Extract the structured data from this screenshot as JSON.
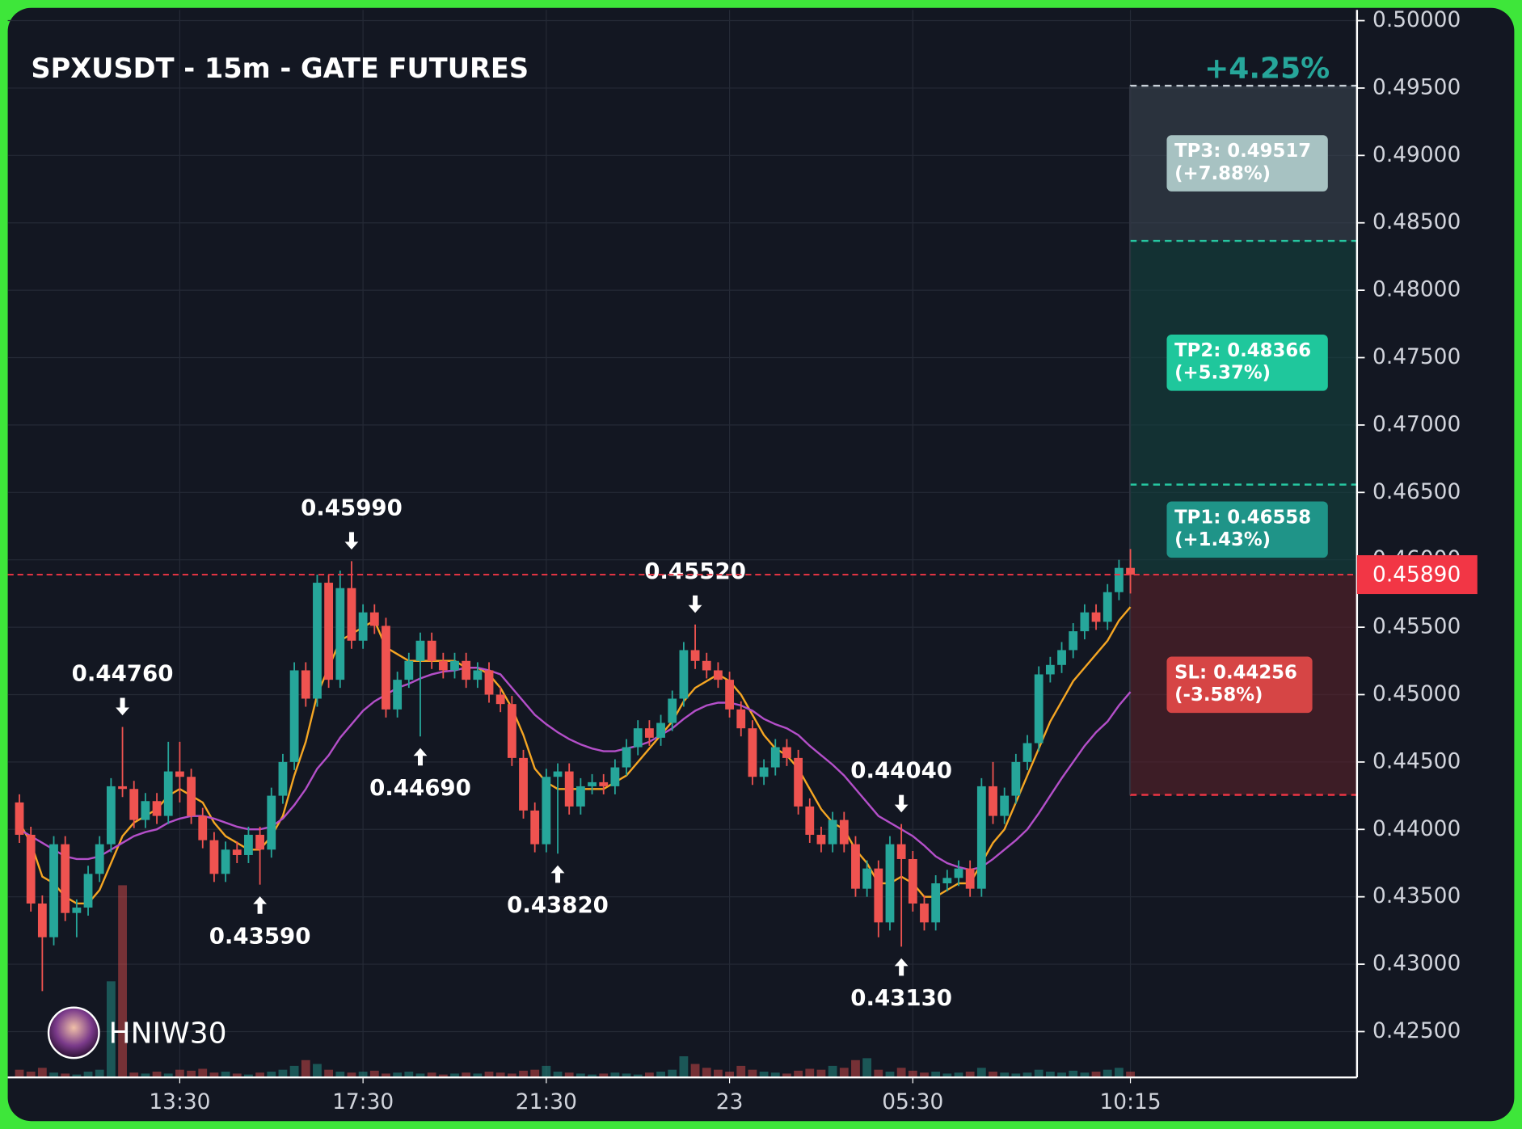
{
  "chart_data": {
    "type": "candlestick",
    "title": "SPXUSDT - 15m - GATE FUTURES",
    "change": "+4.25%",
    "watermark": "HNIW30",
    "up_color": "#26a69a",
    "down_color": "#ef5350",
    "grid": true,
    "ylim": [
      0.4216,
      0.5008
    ],
    "yticks": [
      {
        "value": 0.425,
        "label": "0.42500"
      },
      {
        "value": 0.43,
        "label": "0.43000"
      },
      {
        "value": 0.435,
        "label": "0.43500"
      },
      {
        "value": 0.44,
        "label": "0.44000"
      },
      {
        "value": 0.445,
        "label": "0.44500"
      },
      {
        "value": 0.45,
        "label": "0.45000"
      },
      {
        "value": 0.455,
        "label": "0.45500"
      },
      {
        "value": 0.46,
        "label": "0.46000"
      },
      {
        "value": 0.465,
        "label": "0.46500"
      },
      {
        "value": 0.47,
        "label": "0.47000"
      },
      {
        "value": 0.475,
        "label": "0.47500"
      },
      {
        "value": 0.48,
        "label": "0.48000"
      },
      {
        "value": 0.485,
        "label": "0.48500"
      },
      {
        "value": 0.49,
        "label": "0.49000"
      },
      {
        "value": 0.495,
        "label": "0.49500"
      },
      {
        "value": 0.5,
        "label": "0.50000"
      }
    ],
    "categories": [
      null,
      null,
      null,
      null,
      null,
      null,
      null,
      null,
      null,
      null,
      null,
      null,
      null,
      null,
      "13:30",
      null,
      null,
      null,
      null,
      null,
      null,
      null,
      null,
      null,
      null,
      null,
      null,
      null,
      null,
      null,
      "17:30",
      null,
      null,
      null,
      null,
      null,
      null,
      null,
      null,
      null,
      null,
      null,
      null,
      null,
      null,
      null,
      "21:30",
      null,
      null,
      null,
      null,
      null,
      null,
      null,
      null,
      null,
      null,
      null,
      null,
      null,
      null,
      null,
      "23",
      null,
      null,
      null,
      null,
      null,
      null,
      null,
      null,
      null,
      null,
      null,
      null,
      null,
      null,
      null,
      "05:30",
      null,
      null,
      null,
      null,
      null,
      null,
      null,
      null,
      null,
      null,
      null,
      null,
      null,
      null,
      null,
      null,
      null,
      null,
      "10:15"
    ],
    "open": [
      0.442,
      0.4396,
      0.4345,
      0.432,
      0.4389,
      0.4338,
      0.4342,
      0.4367,
      0.4389,
      0.4432,
      0.443,
      0.4407,
      0.4421,
      0.441,
      0.4443,
      0.4439,
      0.441,
      0.4392,
      0.4367,
      0.4385,
      0.4381,
      0.4396,
      0.4385,
      0.4425,
      0.445,
      0.4518,
      0.4497,
      0.4583,
      0.4511,
      0.4579,
      0.454,
      0.4561,
      0.4551,
      0.4489,
      0.4511,
      0.4525,
      0.454,
      0.4525,
      0.4518,
      0.4525,
      0.4511,
      0.4518,
      0.45,
      0.4493,
      0.4453,
      0.4414,
      0.4389,
      0.4439,
      0.4443,
      0.4417,
      0.4432,
      0.4435,
      0.4432,
      0.4446,
      0.4461,
      0.4475,
      0.4468,
      0.4479,
      0.4497,
      0.4533,
      0.4525,
      0.4518,
      0.4511,
      0.4489,
      0.4475,
      0.4439,
      0.4446,
      0.4461,
      0.4453,
      0.4417,
      0.4396,
      0.4389,
      0.4407,
      0.4389,
      0.4356,
      0.4371,
      0.4331,
      0.4389,
      0.4378,
      0.4345,
      0.4331,
      0.436,
      0.4364,
      0.4371,
      0.4356,
      0.4432,
      0.441,
      0.4425,
      0.445,
      0.4464,
      0.4515,
      0.4522,
      0.4533,
      0.4547,
      0.4561,
      0.4554,
      0.4576,
      0.4594
    ],
    "high": [
      0.4426,
      0.4402,
      0.4351,
      0.4395,
      0.4395,
      0.4348,
      0.4373,
      0.4395,
      0.4438,
      0.4476,
      0.4436,
      0.4427,
      0.4427,
      0.4465,
      0.4465,
      0.4445,
      0.4416,
      0.4398,
      0.4391,
      0.4391,
      0.4402,
      0.4402,
      0.4431,
      0.4456,
      0.4524,
      0.4524,
      0.4589,
      0.4589,
      0.4592,
      0.4599,
      0.4567,
      0.4567,
      0.4557,
      0.4517,
      0.4531,
      0.4546,
      0.4546,
      0.4531,
      0.4531,
      0.4531,
      0.4524,
      0.4524,
      0.4506,
      0.4499,
      0.4459,
      0.442,
      0.4445,
      0.4449,
      0.4449,
      0.4438,
      0.4441,
      0.4441,
      0.4452,
      0.4467,
      0.4481,
      0.4481,
      0.4485,
      0.4503,
      0.4539,
      0.4552,
      0.4531,
      0.4524,
      0.4517,
      0.4495,
      0.4481,
      0.4452,
      0.4467,
      0.4467,
      0.4459,
      0.4423,
      0.4402,
      0.4413,
      0.4413,
      0.4395,
      0.4377,
      0.4377,
      0.4395,
      0.4404,
      0.4384,
      0.4351,
      0.4366,
      0.437,
      0.4377,
      0.4377,
      0.4438,
      0.445,
      0.4431,
      0.4456,
      0.447,
      0.4521,
      0.4528,
      0.4539,
      0.4553,
      0.4567,
      0.4567,
      0.4582,
      0.46,
      0.4608
    ],
    "low": [
      0.439,
      0.4339,
      0.428,
      0.4314,
      0.4332,
      0.432,
      0.4336,
      0.4361,
      0.4383,
      0.4424,
      0.4401,
      0.4401,
      0.4404,
      0.4404,
      0.442,
      0.4404,
      0.4386,
      0.4361,
      0.4361,
      0.4375,
      0.4375,
      0.4359,
      0.4379,
      0.4419,
      0.4444,
      0.4491,
      0.4491,
      0.4505,
      0.4505,
      0.4534,
      0.4534,
      0.4545,
      0.4483,
      0.4483,
      0.4505,
      0.4469,
      0.4519,
      0.4512,
      0.4512,
      0.4505,
      0.4505,
      0.4494,
      0.4487,
      0.4447,
      0.4408,
      0.4383,
      0.4383,
      0.4382,
      0.4411,
      0.4411,
      0.4426,
      0.4426,
      0.4426,
      0.444,
      0.4455,
      0.4462,
      0.4462,
      0.4473,
      0.4491,
      0.4519,
      0.4512,
      0.4505,
      0.4483,
      0.4469,
      0.4433,
      0.4433,
      0.444,
      0.4447,
      0.4411,
      0.439,
      0.4383,
      0.4383,
      0.4383,
      0.435,
      0.435,
      0.432,
      0.4325,
      0.4313,
      0.4339,
      0.4325,
      0.4325,
      0.4354,
      0.4358,
      0.435,
      0.435,
      0.4404,
      0.4404,
      0.4419,
      0.4444,
      0.4458,
      0.4509,
      0.4516,
      0.4527,
      0.4541,
      0.4548,
      0.4548,
      0.457,
      0.4575
    ],
    "close": [
      0.4396,
      0.4345,
      0.432,
      0.4389,
      0.4338,
      0.4342,
      0.4367,
      0.4389,
      0.4432,
      0.443,
      0.4407,
      0.4421,
      0.441,
      0.4443,
      0.4439,
      0.441,
      0.4392,
      0.4367,
      0.4385,
      0.4381,
      0.4396,
      0.4385,
      0.4425,
      0.445,
      0.4518,
      0.4497,
      0.4583,
      0.4511,
      0.4579,
      0.454,
      0.4561,
      0.4551,
      0.4489,
      0.4511,
      0.4525,
      0.454,
      0.4525,
      0.4518,
      0.4525,
      0.4511,
      0.4518,
      0.45,
      0.4493,
      0.4453,
      0.4414,
      0.4389,
      0.4439,
      0.4443,
      0.4417,
      0.4432,
      0.4435,
      0.4432,
      0.4446,
      0.4461,
      0.4475,
      0.4468,
      0.4479,
      0.4497,
      0.4533,
      0.4525,
      0.4518,
      0.4511,
      0.4489,
      0.4475,
      0.4439,
      0.4446,
      0.4461,
      0.4453,
      0.4417,
      0.4396,
      0.4389,
      0.4407,
      0.4389,
      0.4356,
      0.4371,
      0.4331,
      0.4389,
      0.4378,
      0.4345,
      0.4331,
      0.436,
      0.4364,
      0.4371,
      0.4356,
      0.4432,
      0.441,
      0.4425,
      0.445,
      0.4464,
      0.4515,
      0.4522,
      0.4533,
      0.4547,
      0.4561,
      0.4554,
      0.4576,
      0.4594,
      0.4589
    ],
    "volume": [
      8,
      6,
      10,
      5,
      4,
      3,
      6,
      8,
      100,
      200,
      5,
      4,
      6,
      4,
      8,
      7,
      9,
      5,
      6,
      4,
      3,
      5,
      6,
      8,
      12,
      18,
      14,
      8,
      6,
      5,
      6,
      7,
      4,
      5,
      6,
      4,
      5,
      3,
      4,
      5,
      4,
      6,
      5,
      4,
      7,
      8,
      12,
      6,
      5,
      4,
      3,
      4,
      5,
      4,
      3,
      5,
      6,
      8,
      22,
      14,
      10,
      8,
      6,
      12,
      8,
      6,
      5,
      4,
      7,
      9,
      8,
      12,
      10,
      18,
      20,
      8,
      6,
      10,
      7,
      5,
      6,
      4,
      5,
      6,
      10,
      6,
      5,
      4,
      5,
      8,
      6,
      5,
      7,
      5,
      6,
      8,
      10,
      6
    ],
    "overlays": [
      {
        "color": "#f5a623",
        "values": [
          0.4405,
          0.439,
          0.4365,
          0.436,
          0.435,
          0.4345,
          0.4345,
          0.4355,
          0.4375,
          0.4395,
          0.4405,
          0.441,
          0.4415,
          0.4425,
          0.443,
          0.4425,
          0.442,
          0.4405,
          0.4395,
          0.439,
          0.4385,
          0.4385,
          0.4395,
          0.441,
          0.444,
          0.4465,
          0.45,
          0.452,
          0.454,
          0.4545,
          0.455,
          0.4555,
          0.4535,
          0.453,
          0.4525,
          0.4525,
          0.4525,
          0.4525,
          0.4525,
          0.452,
          0.452,
          0.4515,
          0.4505,
          0.449,
          0.447,
          0.4445,
          0.4435,
          0.443,
          0.443,
          0.443,
          0.443,
          0.443,
          0.4435,
          0.444,
          0.445,
          0.446,
          0.447,
          0.448,
          0.4495,
          0.4505,
          0.451,
          0.4515,
          0.451,
          0.45,
          0.4485,
          0.447,
          0.446,
          0.4455,
          0.4445,
          0.443,
          0.4415,
          0.4405,
          0.44,
          0.4385,
          0.4375,
          0.436,
          0.436,
          0.4365,
          0.436,
          0.435,
          0.435,
          0.4355,
          0.436,
          0.436,
          0.4375,
          0.439,
          0.44,
          0.442,
          0.444,
          0.446,
          0.448,
          0.4495,
          0.451,
          0.452,
          0.453,
          0.454,
          0.4555,
          0.4565
        ]
      },
      {
        "color": "#b44fc9",
        "values": [
          0.44,
          0.4395,
          0.439,
          0.4385,
          0.438,
          0.4378,
          0.4378,
          0.438,
          0.4385,
          0.439,
          0.4395,
          0.4398,
          0.44,
          0.4405,
          0.4408,
          0.441,
          0.441,
          0.4408,
          0.4405,
          0.4402,
          0.44,
          0.44,
          0.4402,
          0.4408,
          0.4418,
          0.443,
          0.4445,
          0.4455,
          0.4468,
          0.4478,
          0.4488,
          0.4495,
          0.45,
          0.4505,
          0.4508,
          0.4512,
          0.4515,
          0.4517,
          0.4518,
          0.452,
          0.452,
          0.4518,
          0.4515,
          0.4505,
          0.4495,
          0.4485,
          0.4478,
          0.4472,
          0.4467,
          0.4463,
          0.446,
          0.4458,
          0.4458,
          0.446,
          0.4462,
          0.4465,
          0.447,
          0.4475,
          0.4482,
          0.4488,
          0.4492,
          0.4494,
          0.4494,
          0.4492,
          0.4488,
          0.4482,
          0.4478,
          0.4475,
          0.447,
          0.4462,
          0.4455,
          0.4448,
          0.444,
          0.443,
          0.442,
          0.441,
          0.4405,
          0.44,
          0.4395,
          0.4388,
          0.438,
          0.4375,
          0.4372,
          0.437,
          0.4372,
          0.4378,
          0.4385,
          0.4392,
          0.44,
          0.4412,
          0.4425,
          0.4438,
          0.445,
          0.4462,
          0.4472,
          0.448,
          0.4492,
          0.4502
        ]
      }
    ],
    "annotations": [
      {
        "x": 9,
        "value": 0.4476,
        "label": "0.44760",
        "side": "high"
      },
      {
        "x": 21,
        "value": 0.4359,
        "label": "0.43590",
        "side": "low"
      },
      {
        "x": 29,
        "value": 0.4599,
        "label": "0.45990",
        "side": "high"
      },
      {
        "x": 35,
        "value": 0.4469,
        "label": "0.44690",
        "side": "low"
      },
      {
        "x": 47,
        "value": 0.4382,
        "label": "0.43820",
        "side": "low"
      },
      {
        "x": 59,
        "value": 0.4552,
        "label": "0.45520",
        "side": "high"
      },
      {
        "x": 77,
        "value": 0.4404,
        "label": "0.44040",
        "side": "high"
      },
      {
        "x": 77,
        "value": 0.4313,
        "label": "0.43130",
        "side": "low"
      }
    ],
    "entry": {
      "value": 0.4589,
      "label": "0.45890",
      "color": "#f23645"
    },
    "targets": [
      {
        "value": 0.49517,
        "text": "TP3: 0.49517",
        "percent": "(+7.88%)",
        "color": "#a7c2c2",
        "zone": "#3a4450"
      },
      {
        "value": 0.48366,
        "text": "TP2: 0.48366",
        "percent": "(+5.37%)",
        "color": "#1fc79c",
        "zone": "#14433f"
      },
      {
        "value": 0.46558,
        "text": "TP1: 0.46558",
        "percent": "(+1.43%)",
        "color": "#1f9488",
        "zone": "#14433f"
      }
    ],
    "stop": {
      "value": 0.44256,
      "text": "SL: 0.44256",
      "percent": "(-3.58%)",
      "color": "#d64545",
      "zone": "#5a2129"
    }
  }
}
